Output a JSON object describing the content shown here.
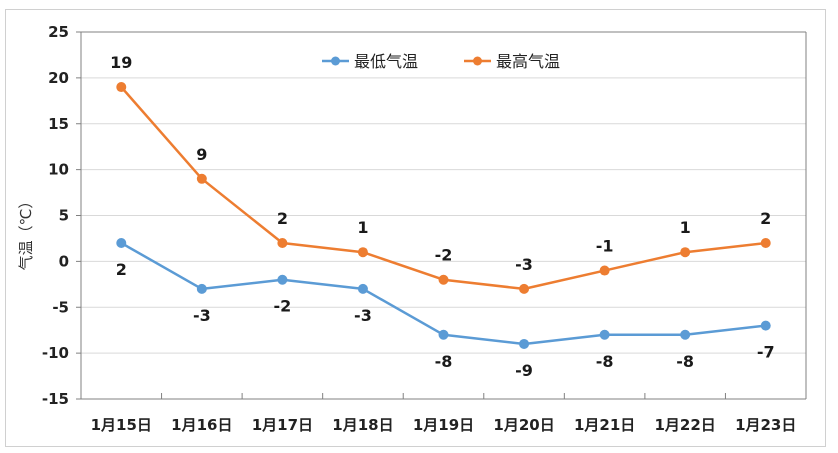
{
  "chart_data": {
    "type": "line",
    "title": "",
    "xlabel": "",
    "ylabel": "气温（℃）",
    "ylim": [
      -15,
      25
    ],
    "yticks": [
      25,
      20,
      15,
      10,
      5,
      0,
      -5,
      -10,
      -15
    ],
    "grid": true,
    "legend_position": "top-center-right",
    "categories": [
      "1月15日",
      "1月16日",
      "1月17日",
      "1月18日",
      "1月19日",
      "1月20日",
      "1月21日",
      "1月22日",
      "1月23日"
    ],
    "series": [
      {
        "name": "最低气温",
        "color": "#5b9bd5",
        "values": [
          2,
          -3,
          -2,
          -3,
          -8,
          -9,
          -8,
          -8,
          -7
        ],
        "label_position": "below"
      },
      {
        "name": "最高气温",
        "color": "#ed7d31",
        "values": [
          19,
          9,
          2,
          1,
          -2,
          -3,
          -1,
          1,
          2
        ],
        "label_position": "above"
      }
    ]
  },
  "colors": {
    "grid": "#d9d9d9",
    "axis": "#808080",
    "low": "#5b9bd5",
    "high": "#ed7d31"
  }
}
